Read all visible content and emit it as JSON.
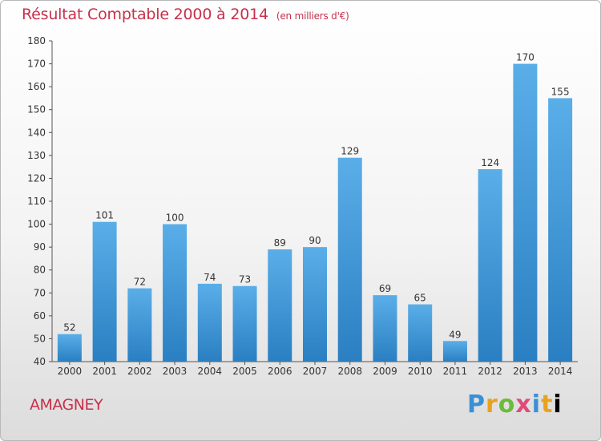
{
  "header": {
    "title": "Résultat Comptable 2000 à 2014",
    "subtitle": "(en milliers d'€)"
  },
  "footer": {
    "commune": "AMAGNEY",
    "logo_text": "Proxiti"
  },
  "colors": {
    "title": "#c8304b",
    "bar_top": "#5aaee8",
    "bar_bottom": "#2a7fc2",
    "axis": "#555555"
  },
  "chart_data": {
    "type": "bar",
    "title": "Résultat Comptable 2000 à 2014",
    "xlabel": "",
    "ylabel": "",
    "ylim": [
      40,
      180
    ],
    "yticks": [
      40,
      50,
      60,
      70,
      80,
      90,
      100,
      110,
      120,
      130,
      140,
      150,
      160,
      170,
      180
    ],
    "grid": false,
    "categories": [
      "2000",
      "2001",
      "2002",
      "2003",
      "2004",
      "2005",
      "2006",
      "2007",
      "2008",
      "2009",
      "2010",
      "2011",
      "2012",
      "2013",
      "2014"
    ],
    "values": [
      52,
      101,
      72,
      100,
      74,
      73,
      89,
      90,
      129,
      69,
      65,
      49,
      124,
      170,
      155
    ]
  }
}
